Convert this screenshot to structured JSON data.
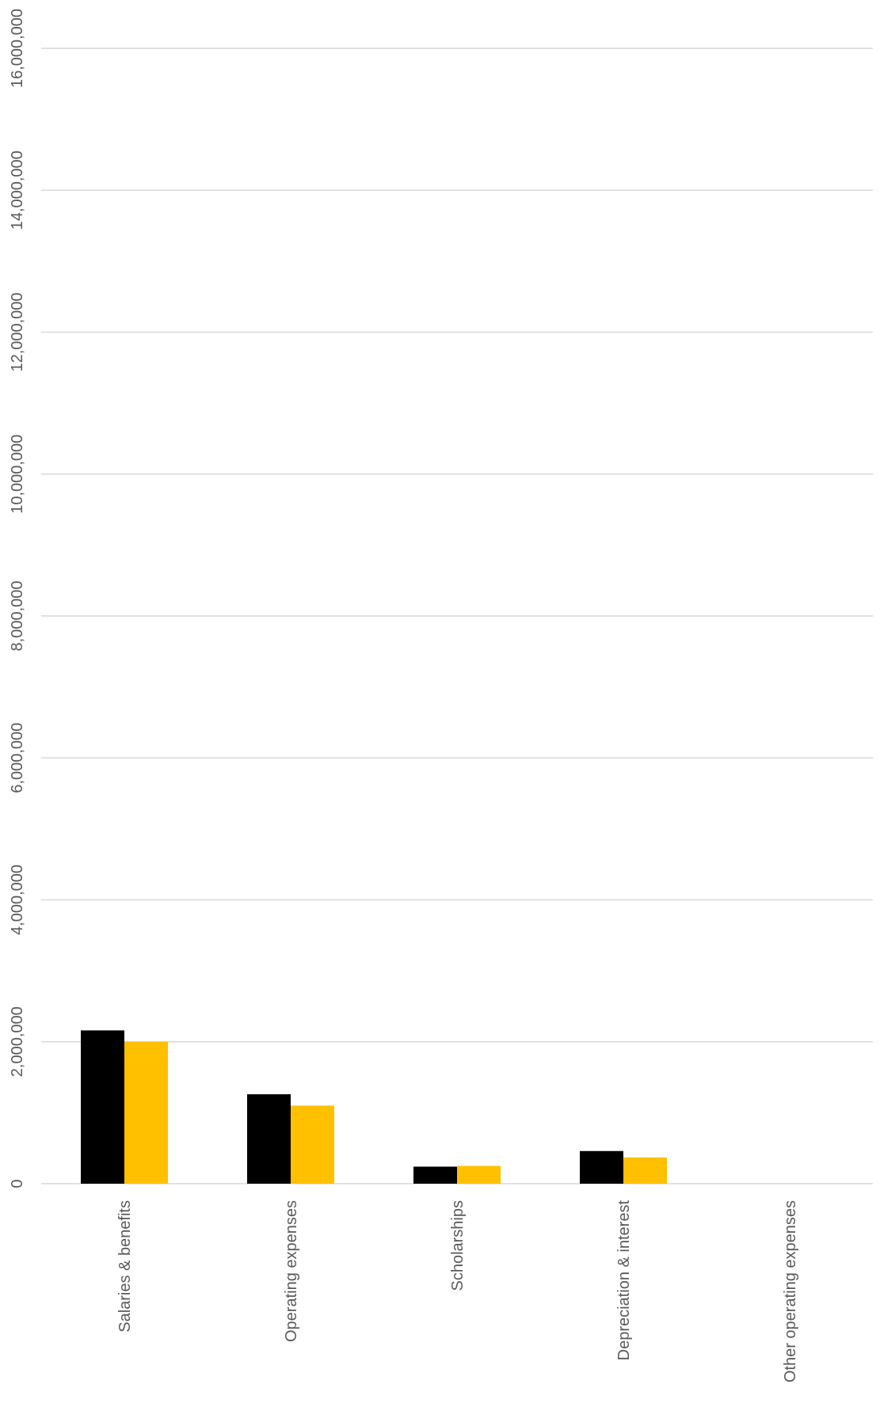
{
  "chart_data": {
    "type": "bar",
    "title": "",
    "xlabel": "",
    "ylabel": "",
    "categories": [
      "Salaries & benefits",
      "Operating expenses",
      "Scholarships",
      "Depreciation & interest",
      "Other operating expenses"
    ],
    "series": [
      {
        "color": "#000000",
        "values": [
          2160000,
          1260000,
          240000,
          460000,
          0
        ]
      },
      {
        "color": "#FFC000",
        "values": [
          2000000,
          1100000,
          250000,
          370000,
          0
        ]
      }
    ],
    "ylim": [
      0,
      16000000
    ],
    "y_ticks": [
      0,
      2000000,
      4000000,
      6000000,
      8000000,
      10000000,
      12000000,
      14000000,
      16000000
    ],
    "y_tick_labels": [
      "0",
      "2,000,000",
      "4,000,000",
      "6,000,000",
      "8,000,000",
      "10,000,000",
      "12,000,000",
      "14,000,000",
      "16,000,000"
    ],
    "grid": true,
    "gridline_color": "#d9d9d9",
    "legend": "none"
  }
}
